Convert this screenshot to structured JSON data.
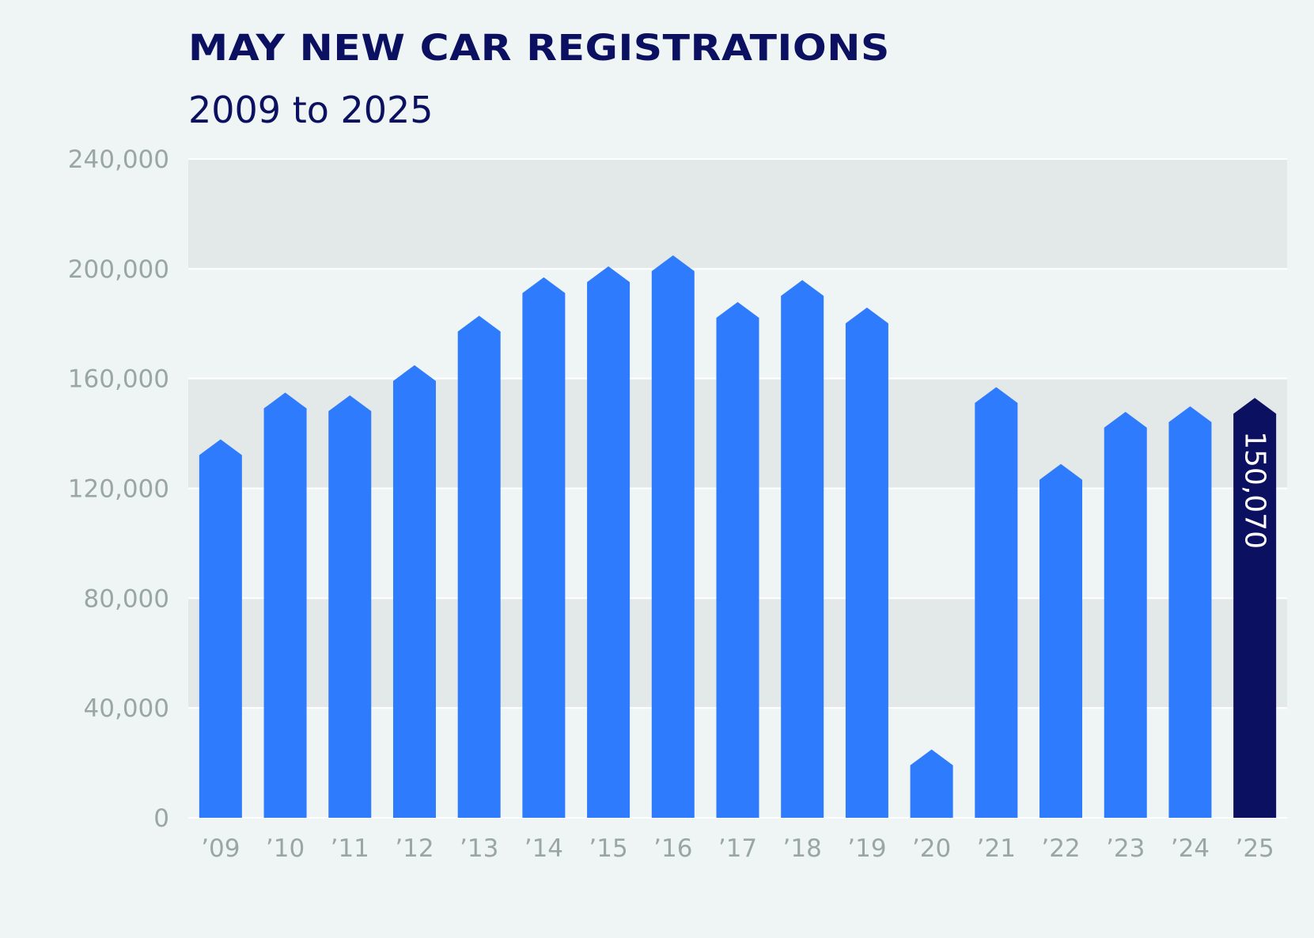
{
  "title": "MAY NEW CAR REGISTRATIONS",
  "subtitle": "2009 to 2025",
  "colors": {
    "background": "#eff5f5",
    "band": "#e3e8e8",
    "bar": "#2e7bfd",
    "highlight_bar": "#0b1160",
    "tick_text": "#9aa6a4",
    "title_text": "#0b1160"
  },
  "chart_data": {
    "type": "bar",
    "title": "MAY NEW CAR REGISTRATIONS",
    "subtitle": "2009 to 2025",
    "categories": [
      "’09",
      "’10",
      "’11",
      "’12",
      "’13",
      "’14",
      "’15",
      "’16",
      "’17",
      "’18",
      "’19",
      "’20",
      "’21",
      "’22",
      "’23",
      "’24",
      "’25"
    ],
    "values": [
      135000,
      152000,
      151000,
      162000,
      180000,
      194000,
      198000,
      202000,
      185000,
      193000,
      183000,
      22000,
      154000,
      126000,
      145000,
      147000,
      150070
    ],
    "highlight_index": 16,
    "highlight_label": "150,070",
    "yticks": [
      "0",
      "40,000",
      "80,000",
      "120,000",
      "160,000",
      "200,000",
      "240,000"
    ],
    "ytick_values": [
      0,
      40000,
      80000,
      120000,
      160000,
      200000,
      240000
    ],
    "ylim": [
      0,
      240000
    ],
    "xlabel": "",
    "ylabel": "",
    "grid": "alternating horizontal bands",
    "legend": "none"
  }
}
